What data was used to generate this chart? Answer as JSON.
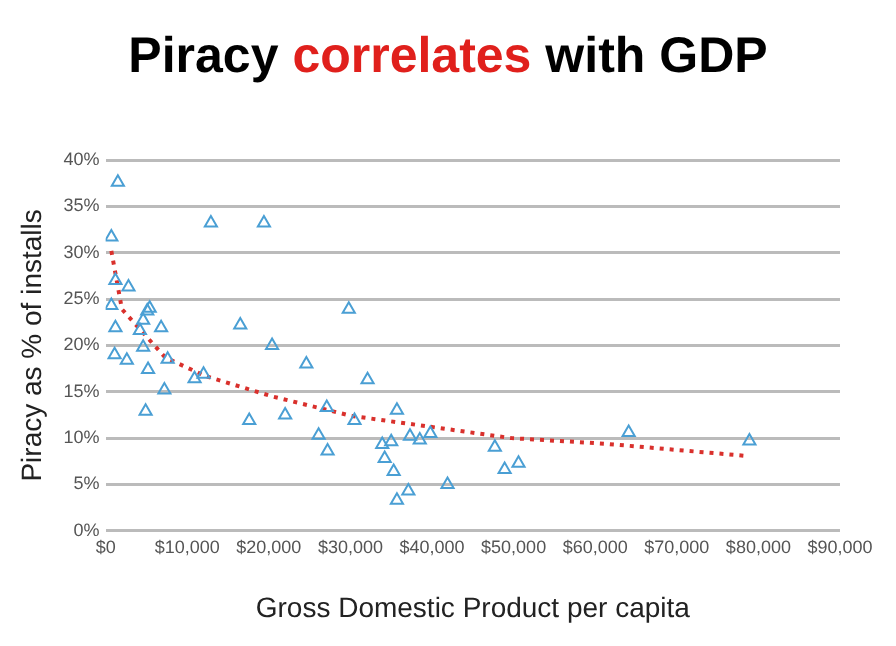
{
  "chart_data": {
    "type": "scatter",
    "title": "Piracy correlates with GDP",
    "xlabel": "Gross Domestic Product per capita",
    "ylabel": "Piracy as % of installs",
    "xlim": [
      0,
      90000
    ],
    "xticks": [
      {
        "value": 0,
        "label": "$0"
      },
      {
        "value": 10000,
        "label": "$10,000"
      },
      {
        "value": 20000,
        "label": "$20,000"
      },
      {
        "value": 30000,
        "label": "$30,000"
      },
      {
        "value": 40000,
        "label": "$40,000"
      },
      {
        "value": 50000,
        "label": "$50,000"
      },
      {
        "value": 60000,
        "label": "$60,000"
      },
      {
        "value": 70000,
        "label": "$70,000"
      },
      {
        "value": 80000,
        "label": "$80,000"
      },
      {
        "value": 90000,
        "label": "$90,000"
      }
    ],
    "ylim": [
      0,
      40
    ],
    "yticks": [
      {
        "value": 0,
        "label": "0%"
      },
      {
        "value": 5,
        "label": "5%"
      },
      {
        "value": 10,
        "label": "10%"
      },
      {
        "value": 15,
        "label": "15%"
      },
      {
        "value": 20,
        "label": "20%"
      },
      {
        "value": 25,
        "label": "25%"
      },
      {
        "value": 30,
        "label": "30%"
      },
      {
        "value": 35,
        "label": "35%"
      },
      {
        "value": 40,
        "label": "40%"
      }
    ],
    "grid": "y",
    "marker": "triangle",
    "series": [
      {
        "color": "#4a9fd4",
        "x": [
          700,
          1500,
          1200,
          2800,
          700,
          1200,
          1100,
          2600,
          4900,
          5200,
          4600,
          4200,
          4600,
          5100,
          5400,
          6800,
          7600,
          7200,
          10900,
          12000,
          12900,
          19400,
          16500,
          20400,
          17600,
          22000,
          24600,
          26100,
          29800,
          32100,
          27200,
          27100,
          30500,
          35700,
          33900,
          35000,
          34200,
          35300,
          35700,
          37100,
          37300,
          38500,
          39800,
          41900,
          47700,
          48900,
          50600,
          64100,
          78900
        ],
        "values": [
          31.7,
          37.6,
          27,
          26.3,
          24.3,
          21.9,
          19,
          18.4,
          12.9,
          17.4,
          19.8,
          21.6,
          22.7,
          23.7,
          24,
          21.9,
          18.5,
          15.2,
          16.4,
          16.9,
          33.2,
          33.2,
          22.2,
          20,
          11.9,
          12.5,
          18,
          10.3,
          23.9,
          16.3,
          8.6,
          13.3,
          11.9,
          13,
          9.3,
          9.6,
          7.8,
          6.4,
          3.3,
          4.3,
          10.2,
          9.8,
          10.5,
          5,
          9,
          6.6,
          7.3,
          10.6,
          9.7
        ]
      },
      {
        "type": "line",
        "color": "#d9302c",
        "marker": "none",
        "line_style": "dotted",
        "x": [
          700,
          2000,
          7300,
          12200,
          20400,
          30100,
          40000,
          49700,
          61100,
          78200
        ],
        "values": [
          30.2,
          23.9,
          18.7,
          16.7,
          14.5,
          12.4,
          11.2,
          10,
          9.4,
          8.1
        ]
      }
    ]
  }
}
